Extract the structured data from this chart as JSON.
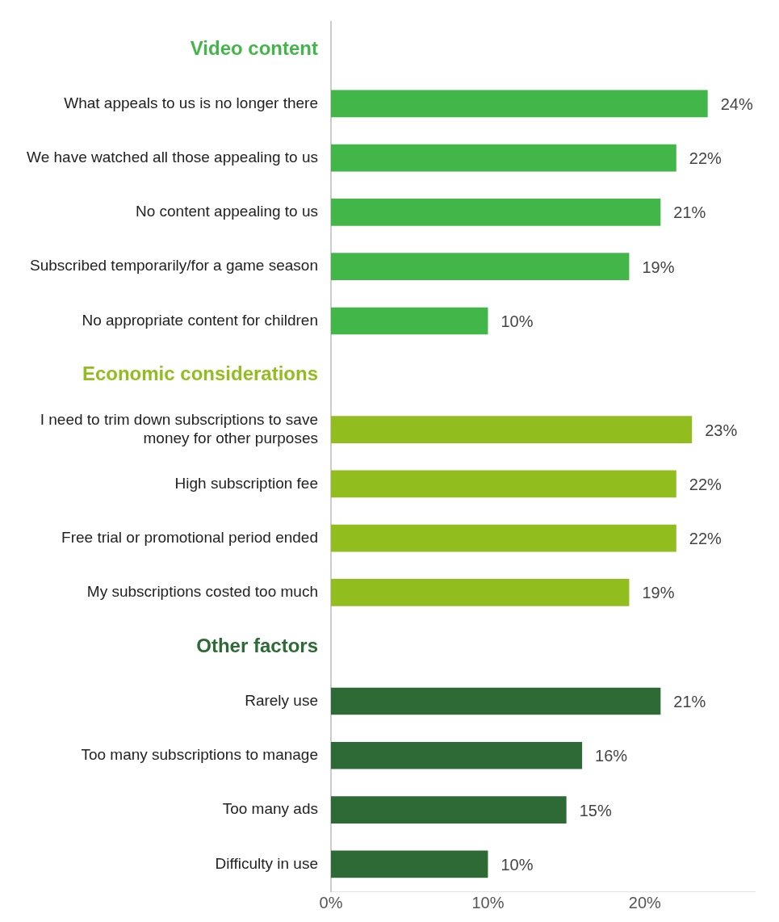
{
  "chart_data": {
    "type": "bar",
    "orientation": "horizontal",
    "categories": [
      null,
      "What appeals to us is no longer there",
      "We have watched all those appealing to us",
      "No content appealing to us",
      "Subscribed temporarily/for a game season",
      "No appropriate content for children",
      null,
      "I need to trim down subscriptions to save money for other purposes",
      "High subscription fee",
      "Free trial or promotional period ended",
      "My subscriptions costed too much",
      null,
      "Rarely use",
      "Too many subscriptions to manage",
      "Too many ads",
      "Difficulty in use"
    ],
    "series": [
      {
        "name": "Video content",
        "color": "#43b649",
        "values": [
          null,
          24,
          22,
          21,
          19,
          10,
          null,
          null,
          null,
          null,
          null,
          null,
          null,
          null,
          null,
          null
        ],
        "value_labels": [
          null,
          "24%",
          "22%",
          "21%",
          "19%",
          "10%",
          null,
          null,
          null,
          null,
          null,
          null,
          null,
          null,
          null,
          null
        ]
      },
      {
        "name": "Economic considerations",
        "color": "#92bd1f",
        "values": [
          null,
          null,
          null,
          null,
          null,
          null,
          null,
          23,
          22,
          22,
          19,
          null,
          null,
          null,
          null,
          null
        ],
        "value_labels": [
          null,
          null,
          null,
          null,
          null,
          null,
          null,
          "23%",
          "22%",
          "22%",
          "19%",
          null,
          null,
          null,
          null,
          null
        ]
      },
      {
        "name": "Other factors",
        "color": "#2d6a36",
        "values": [
          null,
          null,
          null,
          null,
          null,
          null,
          null,
          null,
          null,
          null,
          null,
          null,
          21,
          16,
          15,
          10
        ],
        "value_labels": [
          null,
          null,
          null,
          null,
          null,
          null,
          null,
          null,
          null,
          null,
          null,
          null,
          "21%",
          "16%",
          "15%",
          "10%"
        ]
      }
    ],
    "xlim": [
      0,
      27
    ],
    "xticks": [
      {
        "value": 0,
        "label": "0%"
      },
      {
        "value": 10,
        "label": "10%"
      },
      {
        "value": 20,
        "label": "20%"
      }
    ],
    "grid": false,
    "legend": false
  }
}
